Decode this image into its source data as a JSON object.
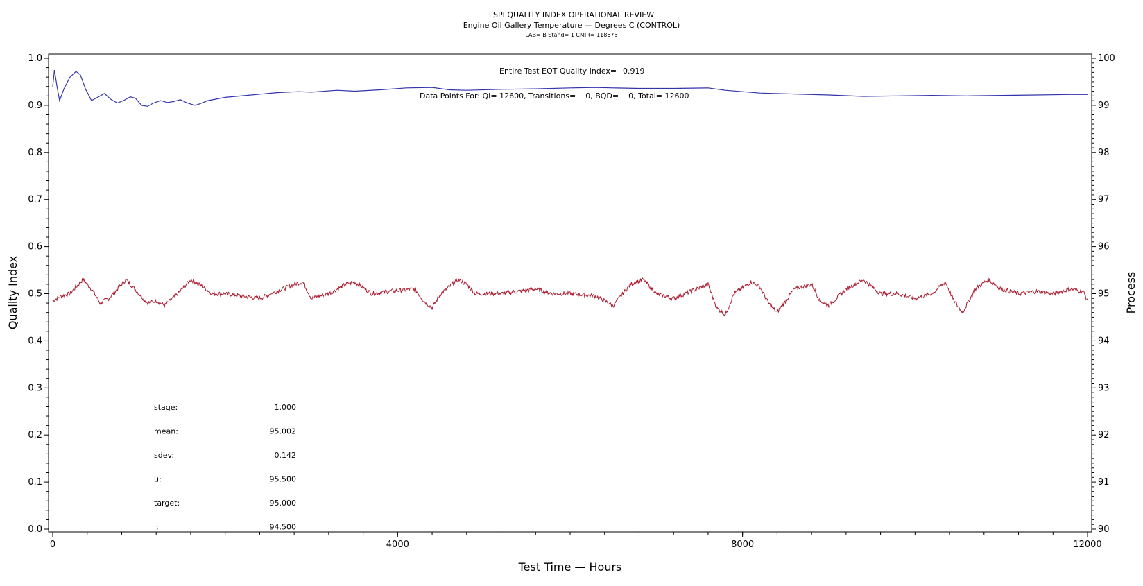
{
  "chart_data": {
    "type": "line",
    "title": "LSPI QUALITY INDEX OPERATIONAL REVIEW",
    "subtitle": "Engine Oil Gallery Temperature — Degrees C (CONTROL)",
    "subtitle2": "LAB= B Stand= 1 CMIR= 118675",
    "xlabel": "Test Time — Hours",
    "ylabel_left": "Quality Index",
    "ylabel_right": "Process",
    "xlim": [
      0,
      12000
    ],
    "ylim_left": [
      0.0,
      1.0
    ],
    "ylim_right": [
      90,
      100
    ],
    "x_ticks": [
      "0",
      "4000",
      "8000",
      "12000"
    ],
    "y_left_ticks": [
      "0.0",
      "0.1",
      "0.2",
      "0.3",
      "0.4",
      "0.5",
      "0.6",
      "0.7",
      "0.8",
      "0.9",
      "1.0"
    ],
    "y_right_ticks": [
      "90",
      "91",
      "92",
      "93",
      "94",
      "95",
      "96",
      "97",
      "98",
      "99",
      "100"
    ],
    "annotations": {
      "eot_label": "Entire Test EOT Quality Index=",
      "eot_value": "0.919",
      "data_points": "Data Points For: QI= 12600, Transitions=    0, BQD=    0, Total= 12600"
    },
    "stats": [
      {
        "label": "stage:",
        "value": "1.000"
      },
      {
        "label": "mean:",
        "value": "95.002"
      },
      {
        "label": "sdev:",
        "value": "0.142"
      },
      {
        "label": "u:",
        "value": "95.500"
      },
      {
        "label": "target:",
        "value": "95.000"
      },
      {
        "label": "l:",
        "value": "94.500"
      }
    ],
    "series": [
      {
        "axis": "left",
        "color": "#3333aa",
        "x": [
          0,
          20,
          50,
          80,
          130,
          200,
          270,
          320,
          380,
          450,
          530,
          600,
          680,
          750,
          820,
          900,
          960,
          1030,
          1100,
          1170,
          1250,
          1330,
          1400,
          1480,
          1560,
          1650,
          1700,
          1800,
          2000,
          2300,
          2600,
          2850,
          3000,
          3300,
          3500,
          3800,
          4100,
          4400,
          4600,
          4800,
          5200,
          5600,
          6000,
          6300,
          6500,
          6800,
          7200,
          7600,
          7800,
          8200,
          8600,
          9000,
          9400,
          9800,
          10200,
          10600,
          11000,
          11400,
          11800,
          12000
        ],
        "y": [
          0.94,
          0.975,
          0.94,
          0.91,
          0.935,
          0.96,
          0.972,
          0.965,
          0.935,
          0.91,
          0.918,
          0.925,
          0.912,
          0.905,
          0.91,
          0.918,
          0.915,
          0.9,
          0.898,
          0.905,
          0.91,
          0.906,
          0.908,
          0.912,
          0.905,
          0.9,
          0.903,
          0.91,
          0.917,
          0.922,
          0.927,
          0.929,
          0.928,
          0.932,
          0.93,
          0.933,
          0.937,
          0.938,
          0.933,
          0.932,
          0.934,
          0.935,
          0.937,
          0.938,
          0.937,
          0.936,
          0.936,
          0.937,
          0.932,
          0.926,
          0.924,
          0.922,
          0.919,
          0.92,
          0.921,
          0.92,
          0.921,
          0.922,
          0.923,
          0.923
        ]
      },
      {
        "axis": "right",
        "color": "#aa1a2e",
        "x": [
          0,
          100,
          200,
          350,
          450,
          550,
          650,
          750,
          850,
          1000,
          1100,
          1200,
          1300,
          1450,
          1600,
          1700,
          1850,
          2000,
          2200,
          2400,
          2600,
          2800,
          2900,
          3000,
          3200,
          3400,
          3500,
          3700,
          3900,
          4200,
          4300,
          4400,
          4500,
          4600,
          4700,
          4800,
          4900,
          5000,
          5200,
          5400,
          5600,
          5800,
          6000,
          6300,
          6500,
          6700,
          6850,
          7000,
          7200,
          7400,
          7600,
          7700,
          7800,
          7900,
          8100,
          8200,
          8300,
          8400,
          8600,
          8800,
          8900,
          9000,
          9200,
          9400,
          9600,
          9800,
          10000,
          10200,
          10350,
          10450,
          10550,
          10700,
          10850,
          11000,
          11200,
          11400,
          11600,
          11800,
          11950,
          12000
        ],
        "y": [
          94.85,
          94.95,
          95.0,
          95.3,
          95.1,
          94.8,
          94.9,
          95.1,
          95.3,
          95.0,
          94.8,
          94.85,
          94.75,
          95.0,
          95.3,
          95.2,
          95.0,
          95.0,
          94.95,
          94.9,
          95.05,
          95.2,
          95.25,
          94.9,
          95.0,
          95.2,
          95.25,
          95.0,
          95.05,
          95.1,
          94.85,
          94.7,
          95.0,
          95.15,
          95.3,
          95.2,
          95.0,
          95.0,
          95.0,
          95.05,
          95.1,
          95.0,
          95.0,
          94.95,
          94.75,
          95.2,
          95.3,
          95.0,
          94.9,
          95.05,
          95.2,
          94.7,
          94.55,
          95.0,
          95.25,
          95.15,
          94.8,
          94.6,
          95.1,
          95.2,
          94.85,
          94.75,
          95.1,
          95.3,
          95.0,
          95.0,
          94.9,
          95.0,
          95.25,
          94.85,
          94.6,
          95.1,
          95.3,
          95.1,
          95.0,
          95.05,
          95.0,
          95.1,
          95.05,
          94.85
        ]
      }
    ]
  }
}
